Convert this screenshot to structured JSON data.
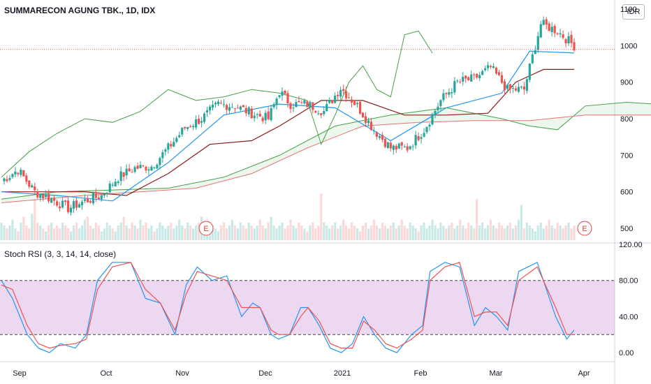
{
  "header": {
    "title": "SUMMARECON AGUNG TBK., 1D, IDX",
    "currency": "IDR"
  },
  "stoch": {
    "title": "Stoch RSI (3, 3, 14, 14, close)"
  },
  "earnings_marker": "E",
  "chart_data": [
    {
      "type": "candlestick",
      "x_ticks": [
        "Sep",
        "Oct",
        "Nov",
        "Dec",
        "2021",
        "Feb",
        "Mar",
        "Apr"
      ],
      "y_ticks": [
        500,
        600,
        700,
        800,
        900,
        1000,
        1100
      ],
      "ylim": [
        460,
        1125
      ],
      "reference_line": 990,
      "colors": {
        "up": "#26a69a",
        "down": "#ef5350",
        "ref": "#ef5350"
      },
      "anchors": [
        [
          0,
          630
        ],
        [
          6,
          660
        ],
        [
          12,
          600
        ],
        [
          18,
          580
        ],
        [
          24,
          555
        ],
        [
          30,
          575
        ],
        [
          36,
          590
        ],
        [
          42,
          640
        ],
        [
          48,
          665
        ],
        [
          54,
          670
        ],
        [
          60,
          720
        ],
        [
          66,
          775
        ],
        [
          72,
          800
        ],
        [
          78,
          840
        ],
        [
          84,
          835
        ],
        [
          90,
          815
        ],
        [
          96,
          800
        ],
        [
          100,
          875
        ],
        [
          104,
          840
        ],
        [
          110,
          840
        ],
        [
          116,
          820
        ],
        [
          122,
          885
        ],
        [
          128,
          835
        ],
        [
          134,
          770
        ],
        [
          140,
          720
        ],
        [
          146,
          720
        ],
        [
          152,
          770
        ],
        [
          158,
          850
        ],
        [
          164,
          900
        ],
        [
          170,
          910
        ],
        [
          176,
          940
        ],
        [
          182,
          880
        ],
        [
          188,
          880
        ],
        [
          194,
          1060
        ],
        [
          200,
          1040
        ],
        [
          206,
          1000
        ]
      ],
      "count": 207,
      "tenkan": [
        [
          0,
          600
        ],
        [
          20,
          590
        ],
        [
          40,
          575
        ],
        [
          60,
          680
        ],
        [
          80,
          810
        ],
        [
          100,
          840
        ],
        [
          120,
          830
        ],
        [
          140,
          740
        ],
        [
          160,
          830
        ],
        [
          180,
          870
        ],
        [
          190,
          985
        ],
        [
          206,
          980
        ]
      ],
      "kijun": [
        [
          0,
          600
        ],
        [
          30,
          600
        ],
        [
          45,
          590
        ],
        [
          60,
          650
        ],
        [
          75,
          730
        ],
        [
          90,
          740
        ],
        [
          100,
          780
        ],
        [
          115,
          850
        ],
        [
          130,
          850
        ],
        [
          145,
          810
        ],
        [
          160,
          810
        ],
        [
          175,
          815
        ],
        [
          185,
          900
        ],
        [
          195,
          935
        ],
        [
          206,
          935
        ]
      ],
      "spanA": [
        [
          0,
          580
        ],
        [
          20,
          600
        ],
        [
          40,
          605
        ],
        [
          60,
          610
        ],
        [
          80,
          640
        ],
        [
          100,
          700
        ],
        [
          120,
          780
        ],
        [
          140,
          810
        ],
        [
          160,
          830
        ],
        [
          180,
          800
        ],
        [
          190,
          780
        ],
        [
          200,
          770
        ],
        [
          210,
          835
        ],
        [
          225,
          845
        ],
        [
          235,
          840
        ]
      ],
      "spanB": [
        [
          0,
          570
        ],
        [
          30,
          590
        ],
        [
          50,
          600
        ],
        [
          70,
          610
        ],
        [
          90,
          650
        ],
        [
          110,
          720
        ],
        [
          130,
          780
        ],
        [
          150,
          790
        ],
        [
          170,
          795
        ],
        [
          190,
          795
        ],
        [
          210,
          810
        ],
        [
          235,
          810
        ]
      ],
      "chikou": [
        [
          0,
          640
        ],
        [
          10,
          710
        ],
        [
          20,
          760
        ],
        [
          30,
          800
        ],
        [
          40,
          790
        ],
        [
          50,
          820
        ],
        [
          60,
          880
        ],
        [
          70,
          850
        ],
        [
          80,
          860
        ],
        [
          90,
          880
        ],
        [
          100,
          870
        ],
        [
          110,
          850
        ],
        [
          115,
          730
        ],
        [
          120,
          810
        ],
        [
          125,
          900
        ],
        [
          130,
          945
        ],
        [
          135,
          880
        ],
        [
          140,
          860
        ],
        [
          145,
          1030
        ],
        [
          150,
          1040
        ],
        [
          155,
          980
        ]
      ],
      "volume": [
        6,
        5,
        4,
        5,
        7,
        4,
        3,
        6,
        8,
        5,
        4,
        9,
        14,
        6,
        5,
        4,
        3,
        5,
        6,
        4,
        5,
        4,
        6,
        5,
        4,
        3,
        5,
        6,
        4,
        5,
        7,
        8,
        5,
        4,
        6,
        5,
        3,
        4,
        6,
        5,
        4,
        3,
        5,
        6,
        8,
        5,
        4,
        6,
        5,
        4,
        7,
        5,
        6,
        4,
        5,
        3,
        4,
        6,
        5,
        4,
        5,
        6,
        4,
        5,
        7,
        5,
        4,
        6,
        5,
        4,
        5,
        6,
        8,
        5,
        4,
        6,
        5,
        4,
        3,
        5,
        6,
        4,
        5,
        7,
        5,
        4,
        6,
        5,
        4,
        6,
        5,
        4,
        5,
        7,
        5,
        4,
        6,
        8,
        5,
        4,
        5,
        6,
        4,
        5,
        7,
        5,
        4,
        6,
        5,
        4,
        3,
        5,
        6,
        4,
        5,
        16,
        6,
        5,
        4,
        5,
        6,
        4,
        5,
        7,
        5,
        4,
        6,
        5,
        4,
        3,
        5,
        6,
        4,
        5,
        7,
        5,
        4,
        6,
        5,
        4,
        5,
        6,
        4,
        5,
        7,
        5,
        4,
        6,
        5,
        4,
        3,
        5,
        6,
        4,
        5,
        7,
        5,
        4,
        6,
        5,
        4,
        5,
        6,
        4,
        5,
        7,
        5,
        4,
        6,
        5,
        4,
        14,
        5,
        6,
        4,
        5,
        7,
        5,
        4,
        6,
        5,
        4,
        5,
        6,
        4,
        5,
        7,
        12,
        4,
        6,
        5,
        4,
        3,
        5,
        6,
        4,
        5,
        7,
        5,
        4,
        6,
        5,
        4,
        5,
        6,
        4,
        5
      ]
    },
    {
      "type": "line",
      "title": "Stoch RSI (3, 3, 14, 14, close)",
      "y_ticks": [
        "120.00",
        "80.00",
        "40.00",
        "0.00"
      ],
      "ylim": [
        -10,
        120
      ],
      "band": [
        20,
        80
      ],
      "series": [
        {
          "color": "#2196f3",
          "points": [
            [
              0,
              80
            ],
            [
              6,
              60
            ],
            [
              14,
              20
            ],
            [
              20,
              5
            ],
            [
              26,
              0
            ],
            [
              32,
              10
            ],
            [
              40,
              5
            ],
            [
              46,
              20
            ],
            [
              52,
              80
            ],
            [
              60,
              100
            ],
            [
              70,
              100
            ],
            [
              78,
              60
            ],
            [
              86,
              55
            ],
            [
              94,
              20
            ],
            [
              100,
              75
            ],
            [
              106,
              95
            ],
            [
              114,
              80
            ],
            [
              122,
              85
            ],
            [
              130,
              40
            ],
            [
              136,
              55
            ],
            [
              140,
              50
            ],
            [
              146,
              20
            ],
            [
              150,
              15
            ],
            [
              156,
              20
            ],
            [
              162,
              50
            ],
            [
              166,
              50
            ],
            [
              172,
              30
            ],
            [
              178,
              5
            ],
            [
              184,
              0
            ],
            [
              190,
              10
            ],
            [
              196,
              40
            ],
            [
              202,
              20
            ],
            [
              208,
              5
            ],
            [
              214,
              0
            ],
            [
              222,
              20
            ],
            [
              228,
              30
            ],
            [
              232,
              90
            ],
            [
              240,
              100
            ],
            [
              248,
              95
            ],
            [
              256,
              30
            ],
            [
              262,
              50
            ],
            [
              268,
              40
            ],
            [
              274,
              25
            ],
            [
              280,
              90
            ],
            [
              290,
              100
            ],
            [
              300,
              40
            ],
            [
              306,
              15
            ],
            [
              310,
              25
            ]
          ]
        },
        {
          "color": "#ef5350",
          "points": [
            [
              0,
              75
            ],
            [
              6,
              70
            ],
            [
              14,
              30
            ],
            [
              20,
              10
            ],
            [
              26,
              5
            ],
            [
              32,
              8
            ],
            [
              40,
              10
            ],
            [
              46,
              15
            ],
            [
              52,
              70
            ],
            [
              60,
              95
            ],
            [
              70,
              100
            ],
            [
              78,
              70
            ],
            [
              86,
              55
            ],
            [
              94,
              25
            ],
            [
              100,
              65
            ],
            [
              106,
              90
            ],
            [
              114,
              85
            ],
            [
              122,
              80
            ],
            [
              130,
              50
            ],
            [
              136,
              50
            ],
            [
              140,
              50
            ],
            [
              146,
              25
            ],
            [
              150,
              20
            ],
            [
              156,
              20
            ],
            [
              162,
              40
            ],
            [
              166,
              50
            ],
            [
              172,
              35
            ],
            [
              178,
              10
            ],
            [
              184,
              5
            ],
            [
              190,
              5
            ],
            [
              196,
              35
            ],
            [
              202,
              25
            ],
            [
              208,
              10
            ],
            [
              214,
              5
            ],
            [
              222,
              15
            ],
            [
              228,
              25
            ],
            [
              232,
              80
            ],
            [
              240,
              95
            ],
            [
              248,
              100
            ],
            [
              256,
              40
            ],
            [
              262,
              45
            ],
            [
              268,
              45
            ],
            [
              274,
              30
            ],
            [
              280,
              80
            ],
            [
              290,
              95
            ],
            [
              300,
              50
            ],
            [
              306,
              20
            ],
            [
              310,
              20
            ]
          ]
        }
      ]
    }
  ]
}
